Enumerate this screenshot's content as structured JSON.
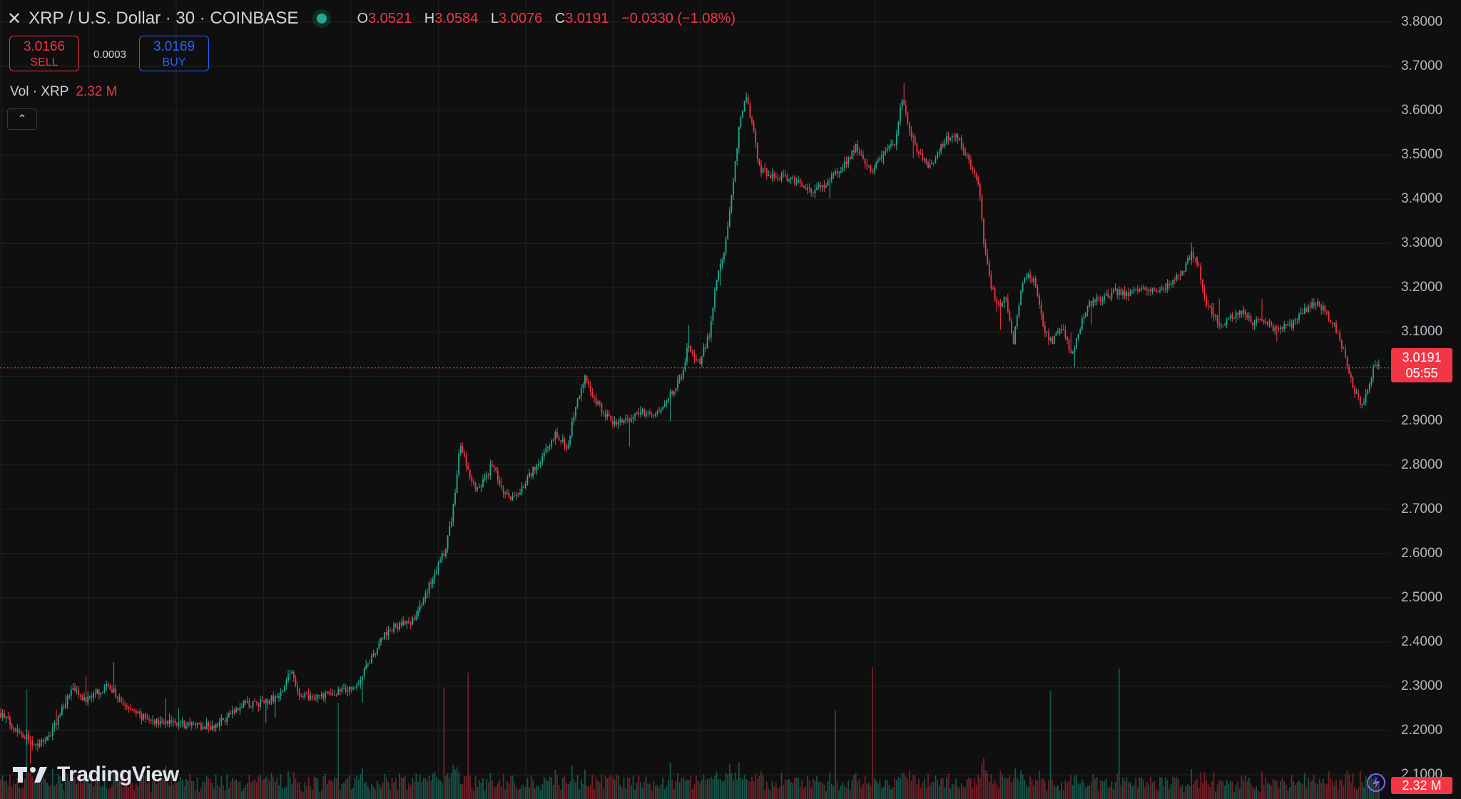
{
  "header": {
    "close_glyph": "✕",
    "title": "XRP / U.S. Dollar · 30 · COINBASE",
    "open_label": "O",
    "open": "3.0521",
    "high_label": "H",
    "high": "3.0584",
    "low_label": "L",
    "low": "3.0076",
    "close_label": "C",
    "close": "3.0191",
    "change": "−0.0330 (−1.08%)"
  },
  "trade": {
    "sell_price": "3.0166",
    "sell_label": "SELL",
    "spread": "0.0003",
    "buy_price": "3.0169",
    "buy_label": "BUY"
  },
  "volume": {
    "label": "Vol · XRP",
    "value": "2.32 M"
  },
  "collapse_glyph": "⌃",
  "price_tag": {
    "price": "3.0191",
    "countdown": "05:55"
  },
  "volume_tag": "2.32 M",
  "logo": {
    "text": "TradingView",
    "icon": "tradingview-logo-icon"
  },
  "colors": {
    "up": "#22ab94",
    "down": "#f23645",
    "background": "#0f0f0f",
    "grid": "#1e1e1e"
  },
  "chart_data": {
    "type": "candlestick",
    "symbol": "XRP / U.S. Dollar",
    "interval": "30",
    "exchange": "COINBASE",
    "y_axis_ticks": [
      "3.8000",
      "3.7000",
      "3.6000",
      "3.5000",
      "3.4000",
      "3.3000",
      "3.2000",
      "3.1000",
      "2.9000",
      "2.8000",
      "2.7000",
      "2.6000",
      "2.5000",
      "2.4000",
      "2.3000",
      "2.2000",
      "2.1000"
    ],
    "ylim": [
      2.06,
      3.84
    ],
    "last_price": 3.0191,
    "grid": true,
    "price_path": [
      [
        0,
        2.24
      ],
      [
        25,
        2.2
      ],
      [
        50,
        2.17
      ],
      [
        70,
        2.19
      ],
      [
        85,
        2.24
      ],
      [
        100,
        2.29
      ],
      [
        120,
        2.27
      ],
      [
        140,
        2.29
      ],
      [
        155,
        2.3
      ],
      [
        170,
        2.26
      ],
      [
        190,
        2.24
      ],
      [
        210,
        2.22
      ],
      [
        240,
        2.22
      ],
      [
        270,
        2.21
      ],
      [
        300,
        2.21
      ],
      [
        320,
        2.23
      ],
      [
        340,
        2.26
      ],
      [
        360,
        2.26
      ],
      [
        380,
        2.27
      ],
      [
        395,
        2.28
      ],
      [
        405,
        2.34
      ],
      [
        420,
        2.28
      ],
      [
        440,
        2.27
      ],
      [
        460,
        2.28
      ],
      [
        480,
        2.29
      ],
      [
        500,
        2.3
      ],
      [
        520,
        2.36
      ],
      [
        540,
        2.42
      ],
      [
        560,
        2.44
      ],
      [
        580,
        2.45
      ],
      [
        595,
        2.5
      ],
      [
        610,
        2.56
      ],
      [
        625,
        2.61
      ],
      [
        635,
        2.7
      ],
      [
        645,
        2.85
      ],
      [
        655,
        2.79
      ],
      [
        670,
        2.74
      ],
      [
        690,
        2.8
      ],
      [
        705,
        2.74
      ],
      [
        720,
        2.72
      ],
      [
        740,
        2.77
      ],
      [
        760,
        2.82
      ],
      [
        780,
        2.87
      ],
      [
        795,
        2.84
      ],
      [
        805,
        2.92
      ],
      [
        820,
        3.0
      ],
      [
        830,
        2.96
      ],
      [
        845,
        2.92
      ],
      [
        860,
        2.89
      ],
      [
        880,
        2.9
      ],
      [
        900,
        2.92
      ],
      [
        920,
        2.91
      ],
      [
        940,
        2.96
      ],
      [
        955,
        3.0
      ],
      [
        965,
        3.07
      ],
      [
        980,
        3.03
      ],
      [
        995,
        3.1
      ],
      [
        1005,
        3.23
      ],
      [
        1015,
        3.28
      ],
      [
        1025,
        3.4
      ],
      [
        1035,
        3.55
      ],
      [
        1045,
        3.64
      ],
      [
        1055,
        3.56
      ],
      [
        1065,
        3.47
      ],
      [
        1080,
        3.45
      ],
      [
        1100,
        3.45
      ],
      [
        1120,
        3.44
      ],
      [
        1140,
        3.42
      ],
      [
        1160,
        3.44
      ],
      [
        1180,
        3.47
      ],
      [
        1200,
        3.52
      ],
      [
        1220,
        3.46
      ],
      [
        1240,
        3.5
      ],
      [
        1255,
        3.53
      ],
      [
        1265,
        3.63
      ],
      [
        1275,
        3.55
      ],
      [
        1290,
        3.5
      ],
      [
        1305,
        3.47
      ],
      [
        1320,
        3.52
      ],
      [
        1335,
        3.55
      ],
      [
        1350,
        3.52
      ],
      [
        1360,
        3.48
      ],
      [
        1372,
        3.43
      ],
      [
        1380,
        3.29
      ],
      [
        1390,
        3.2
      ],
      [
        1400,
        3.16
      ],
      [
        1410,
        3.18
      ],
      [
        1420,
        3.07
      ],
      [
        1430,
        3.18
      ],
      [
        1440,
        3.24
      ],
      [
        1450,
        3.21
      ],
      [
        1465,
        3.1
      ],
      [
        1475,
        3.08
      ],
      [
        1490,
        3.12
      ],
      [
        1500,
        3.04
      ],
      [
        1510,
        3.09
      ],
      [
        1525,
        3.16
      ],
      [
        1545,
        3.18
      ],
      [
        1565,
        3.19
      ],
      [
        1585,
        3.19
      ],
      [
        1600,
        3.2
      ],
      [
        1620,
        3.19
      ],
      [
        1640,
        3.21
      ],
      [
        1660,
        3.24
      ],
      [
        1670,
        3.28
      ],
      [
        1680,
        3.25
      ],
      [
        1690,
        3.17
      ],
      [
        1700,
        3.14
      ],
      [
        1710,
        3.12
      ],
      [
        1725,
        3.13
      ],
      [
        1740,
        3.15
      ],
      [
        1755,
        3.12
      ],
      [
        1770,
        3.13
      ],
      [
        1785,
        3.11
      ],
      [
        1800,
        3.11
      ],
      [
        1815,
        3.12
      ],
      [
        1830,
        3.15
      ],
      [
        1845,
        3.17
      ],
      [
        1860,
        3.14
      ],
      [
        1875,
        3.1
      ],
      [
        1890,
        3.02
      ],
      [
        1900,
        2.96
      ],
      [
        1910,
        2.93
      ],
      [
        1918,
        2.97
      ],
      [
        1925,
        3.02
      ],
      [
        1935,
        3.02
      ]
    ]
  }
}
